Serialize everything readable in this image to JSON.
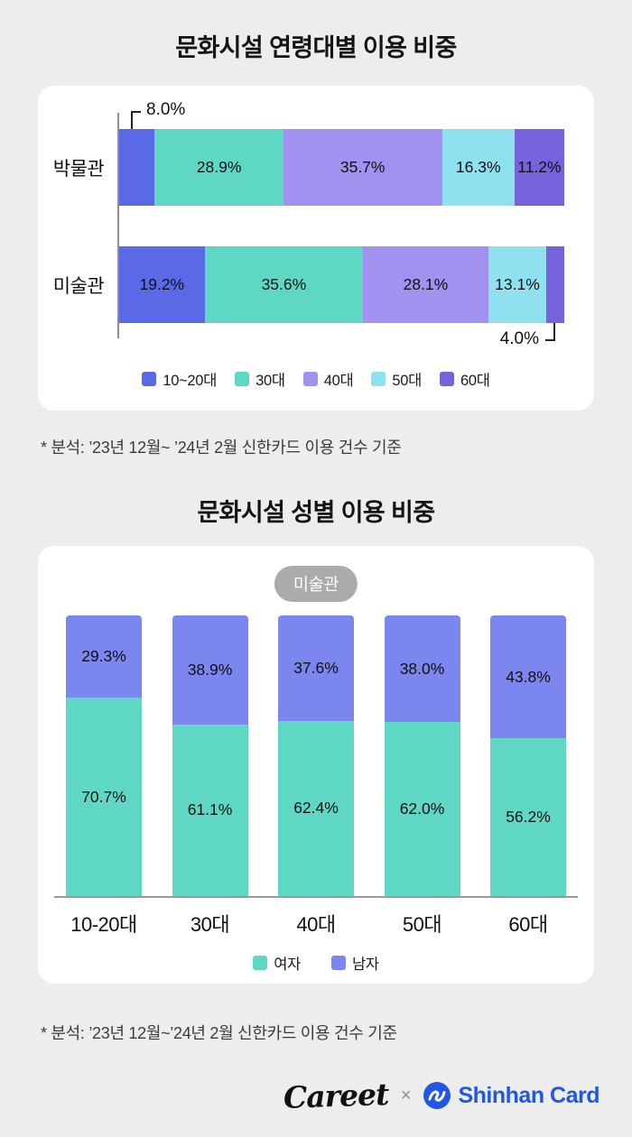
{
  "chart_data": [
    {
      "type": "bar",
      "orientation": "horizontal",
      "stacked": true,
      "title": "문화시설 연령대별 이용 비중",
      "categories": [
        "박물관",
        "미술관"
      ],
      "series": [
        {
          "name": "10~20대",
          "color": "#5a6ae6",
          "values": [
            8.0,
            19.2
          ]
        },
        {
          "name": "30대",
          "color": "#5ed7c4",
          "values": [
            28.9,
            35.6
          ]
        },
        {
          "name": "40대",
          "color": "#a192f0",
          "values": [
            35.7,
            28.1
          ]
        },
        {
          "name": "50대",
          "color": "#8fe1f0",
          "values": [
            16.3,
            13.1
          ]
        },
        {
          "name": "60대",
          "color": "#7862dc",
          "values": [
            11.2,
            4.0
          ]
        }
      ],
      "callouts": [
        {
          "row": 0,
          "seg": 0,
          "position": "top",
          "label": "8.0%"
        },
        {
          "row": 1,
          "seg": 4,
          "position": "bottom",
          "label": "4.0%"
        }
      ],
      "legend_position": "bottom",
      "xlim": [
        0,
        100
      ],
      "note": "* 분석: ’23년 12월~ ’24년 2월 신한카드 이용 건수 기준"
    },
    {
      "type": "bar",
      "orientation": "vertical",
      "stacked": true,
      "title": "문화시설 성별 이용 비중",
      "badge": "미술관",
      "categories": [
        "10-20대",
        "30대",
        "40대",
        "50대",
        "60대"
      ],
      "series": [
        {
          "name": "여자",
          "color": "#5ed7c4",
          "values": [
            70.7,
            61.1,
            62.4,
            62.0,
            56.2
          ]
        },
        {
          "name": "남자",
          "color": "#7b86ee",
          "values": [
            29.3,
            38.9,
            37.6,
            38.0,
            43.8
          ]
        }
      ],
      "ylim": [
        0,
        100
      ],
      "legend_position": "bottom",
      "note": "* 분석: ’23년 12월~’24년 2월 신한카드 이용 건수 기준"
    }
  ],
  "footer": {
    "careet_logo": "Careet",
    "separator": "×",
    "shinhan_logo": "Shinhan Card",
    "shinhan_color": "#2257e6"
  }
}
